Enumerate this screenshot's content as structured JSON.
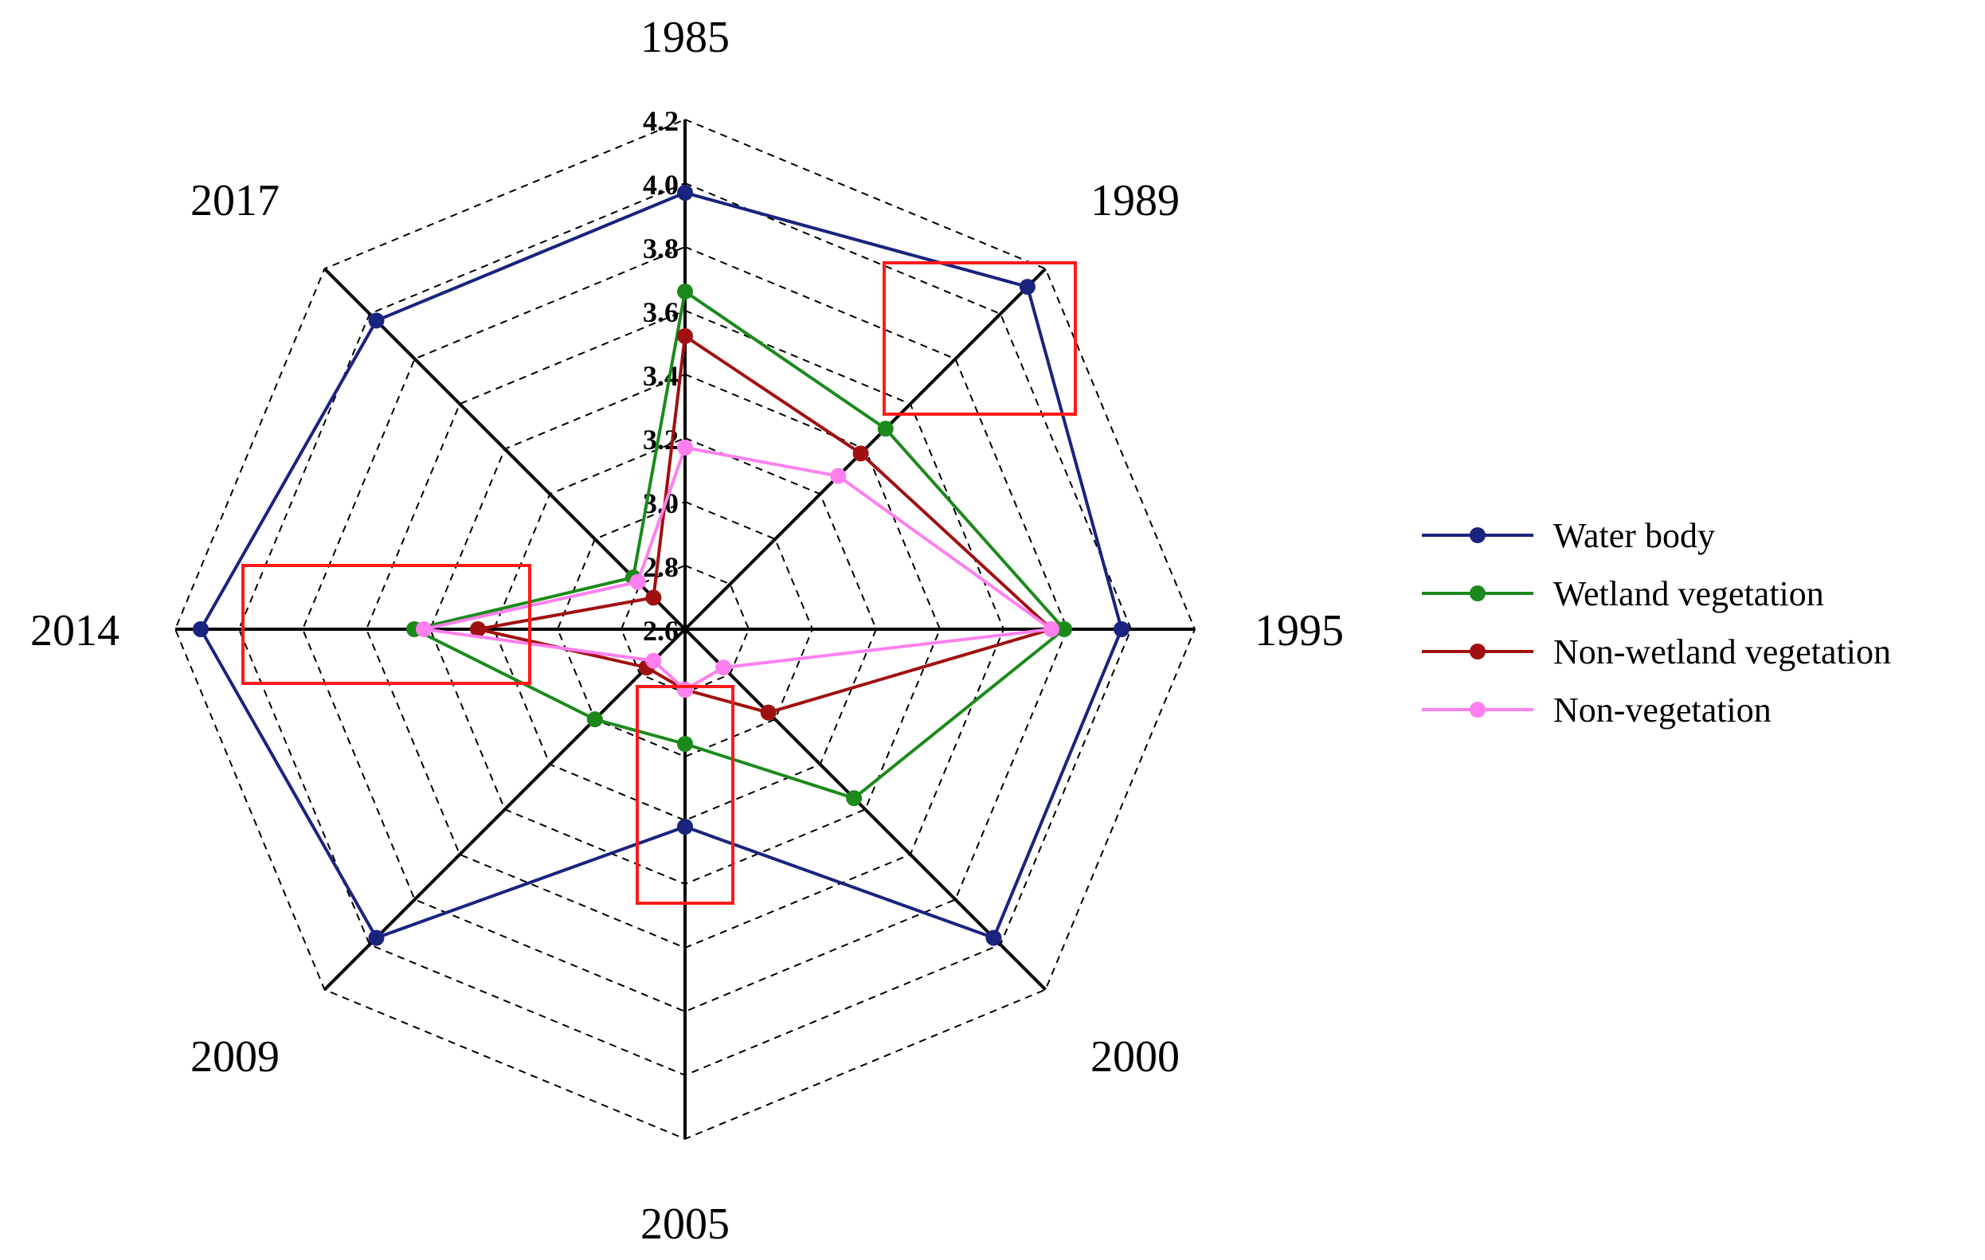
{
  "chart_data": {
    "type": "radar",
    "title": "",
    "categories": [
      "1985",
      "1989",
      "1995",
      "2000",
      "2005",
      "2009",
      "2014",
      "2017"
    ],
    "r_ticks": [
      "2.6",
      "2.8",
      "3.0",
      "3.2",
      "3.4",
      "3.6",
      "3.8",
      "4.0",
      "4.2"
    ],
    "rlim": [
      2.6,
      4.2
    ],
    "grid": true,
    "legend_position": "right",
    "series": [
      {
        "name": "Water body",
        "color": "#1a237e",
        "values": [
          3.97,
          4.12,
          3.97,
          3.97,
          3.22,
          3.97,
          4.12,
          3.97
        ]
      },
      {
        "name": "Wetland vegetation",
        "color": "#1b8a1b",
        "values": [
          3.66,
          3.49,
          3.79,
          3.35,
          2.96,
          3.0,
          3.45,
          2.83
        ]
      },
      {
        "name": "Non-wetland vegetation",
        "color": "#a01010",
        "values": [
          3.52,
          3.38,
          3.75,
          2.97,
          2.79,
          2.77,
          3.25,
          2.74
        ]
      },
      {
        "name": "Non-vegetation",
        "color": "#ff7fef",
        "values": [
          3.17,
          3.28,
          3.75,
          2.77,
          2.79,
          2.74,
          3.42,
          2.81
        ]
      }
    ],
    "highlight_boxes": [
      "1989",
      "2005",
      "2014"
    ],
    "highlight_color": "#ff1a1a"
  }
}
